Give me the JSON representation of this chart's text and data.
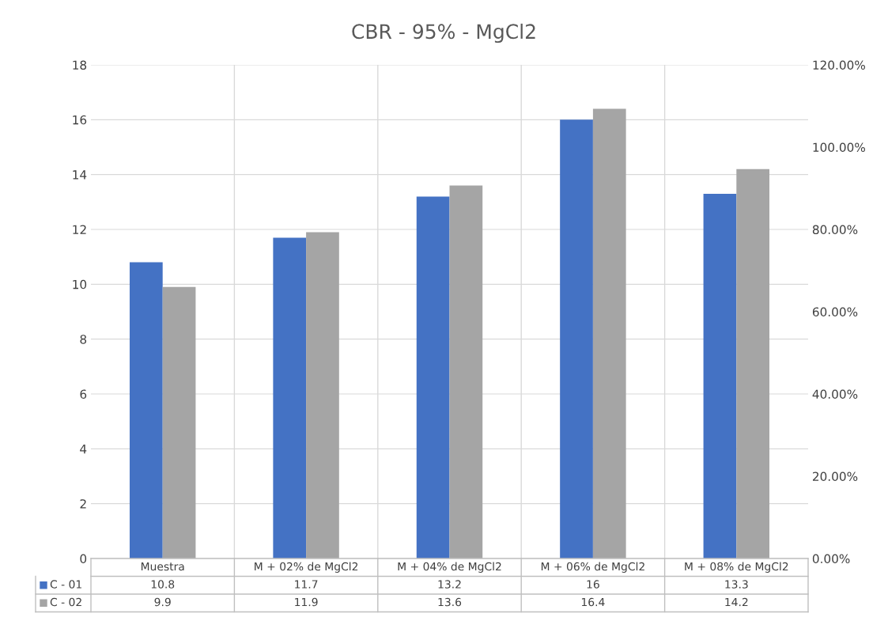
{
  "chart_data": {
    "type": "bar",
    "title": "CBR - 95% - MgCl2",
    "categories": [
      "Muestra",
      "M + 02% de MgCl2",
      "M + 04% de MgCl2",
      "M + 06% de MgCl2",
      "M + 08% de MgCl2"
    ],
    "series": [
      {
        "name": "C - 01",
        "color": "#4472c4",
        "values": [
          10.8,
          11.7,
          13.2,
          16,
          13.3
        ]
      },
      {
        "name": "C - 02",
        "color": "#a5a5a5",
        "values": [
          9.9,
          11.9,
          13.6,
          16.4,
          14.2
        ]
      }
    ],
    "ylim": [
      0,
      18
    ],
    "yticks": [
      0,
      2,
      4,
      6,
      8,
      10,
      12,
      14,
      16,
      18
    ],
    "y2lim": [
      0,
      120
    ],
    "y2ticks": [
      {
        "value": 0,
        "label": "0.00%"
      },
      {
        "value": 20,
        "label": "20.00%"
      },
      {
        "value": 40,
        "label": "40.00%"
      },
      {
        "value": 60,
        "label": "60.00%"
      },
      {
        "value": 80,
        "label": "80.00%"
      },
      {
        "value": 100,
        "label": "100.00%"
      },
      {
        "value": 120,
        "label": "120.00%"
      }
    ],
    "grid": true,
    "data_labels": true,
    "legend": "bottom left"
  }
}
